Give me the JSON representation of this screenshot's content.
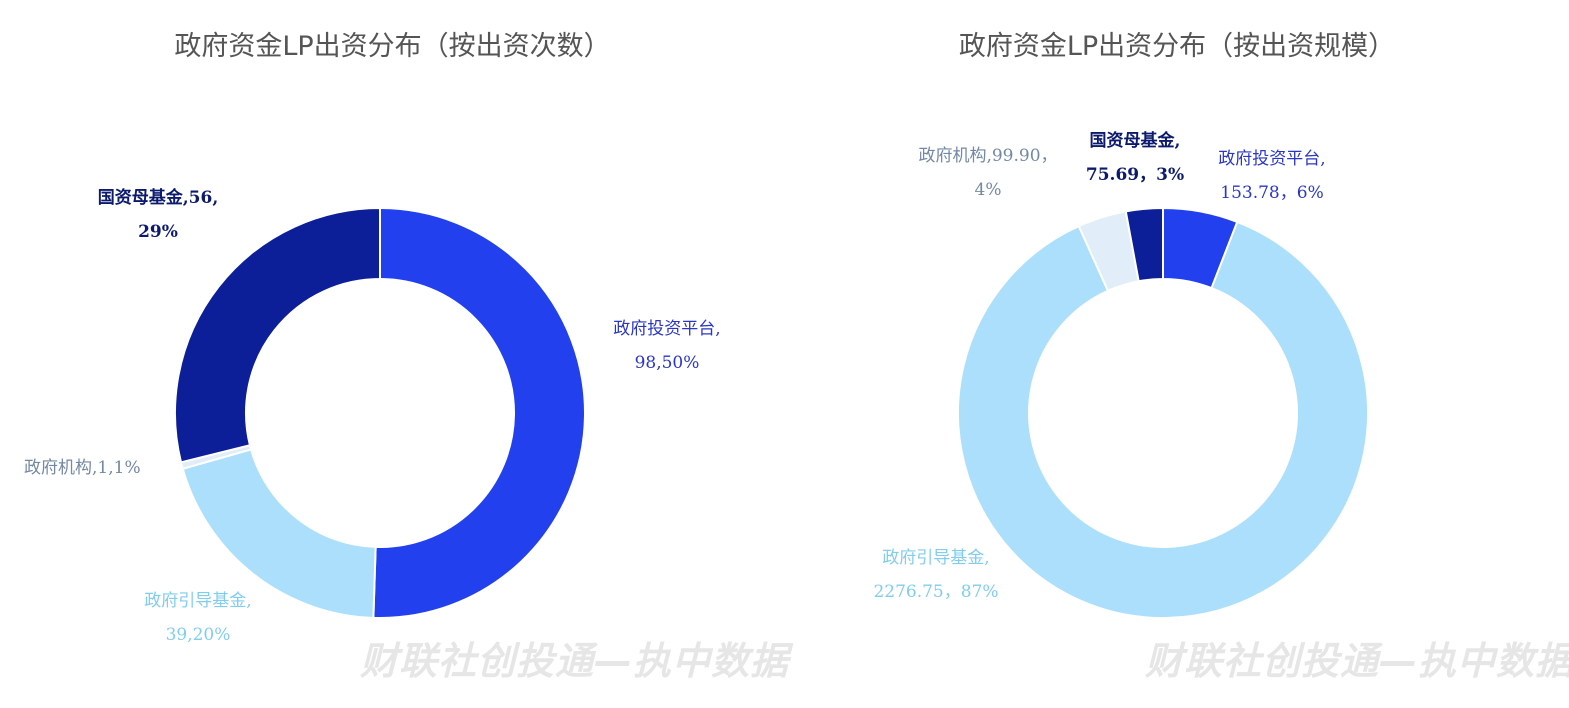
{
  "watermark": "财联社创投通—执中数据",
  "chart_data": [
    {
      "type": "pie",
      "donut": true,
      "title": "政府资金LP出资分布（按出资次数）",
      "slices": [
        {
          "name": "政府投资平台",
          "value": 98,
          "percent": "50%",
          "color": "#2340ef",
          "label_color": "#2a36c7"
        },
        {
          "name": "政府引导基金",
          "value": 39,
          "percent": "20%",
          "color": "#abdffb",
          "label_color": "#80cdef"
        },
        {
          "name": "政府机构",
          "value": 1,
          "percent": "1%",
          "color": "#e1edf8",
          "label_color": "#7388a6"
        },
        {
          "name": "国资母基金",
          "value": 56,
          "percent": "29%",
          "color": "#0c1f99",
          "label_color": "#0c1a6e"
        }
      ],
      "labels": [
        {
          "line1": "政府投资平台,",
          "line2": "98,50%"
        },
        {
          "line1": "政府引导基金,",
          "line2": "39,20%"
        },
        {
          "line1": "政府机构,1,1%",
          "line2": ""
        },
        {
          "line1": "国资母基金,56,",
          "line2": "29%"
        }
      ]
    },
    {
      "type": "pie",
      "donut": true,
      "title": "政府资金LP出资分布（按出资规模）",
      "slices": [
        {
          "name": "政府投资平台",
          "value": 153.78,
          "percent": "6%",
          "color": "#2340ef",
          "label_color": "#2a36c7"
        },
        {
          "name": "政府引导基金",
          "value": 2276.75,
          "percent": "87%",
          "color": "#abdffb",
          "label_color": "#80cdef"
        },
        {
          "name": "政府机构",
          "value": 99.9,
          "percent": "4%",
          "color": "#e1edf8",
          "label_color": "#7388a6"
        },
        {
          "name": "国资母基金",
          "value": 75.69,
          "percent": "3%",
          "color": "#0c1f99",
          "label_color": "#0c1a6e"
        }
      ],
      "labels": [
        {
          "line1": "政府投资平台,",
          "line2": "153.78，6%"
        },
        {
          "line1": "政府引导基金,",
          "line2": "2276.75，87%"
        },
        {
          "line1": "政府机构,99.90，",
          "line2": "4%"
        },
        {
          "line1": "国资母基金,",
          "line2": "75.69，3%"
        }
      ]
    }
  ]
}
